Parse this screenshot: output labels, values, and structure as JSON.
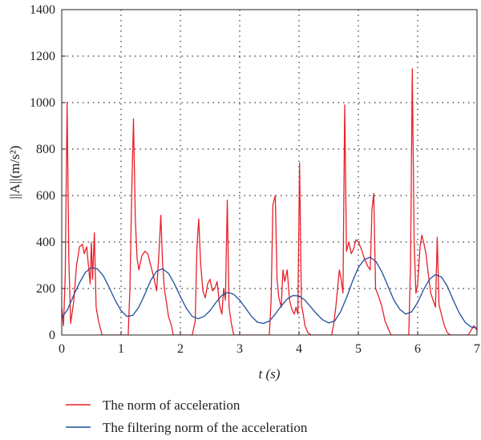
{
  "chart_data": {
    "type": "line",
    "xlabel": "t (s)",
    "ylabel": "||A||(m/s²)",
    "xlim": [
      0,
      7
    ],
    "ylim": [
      0,
      1400
    ],
    "xticks": [
      0,
      1,
      2,
      3,
      4,
      5,
      6,
      7
    ],
    "yticks": [
      0,
      200,
      400,
      600,
      800,
      1000,
      1200,
      1400
    ],
    "grid": "dotted",
    "legend_position": "bottom",
    "series": [
      {
        "name": "The norm of acceleration",
        "color": "#e8202a",
        "points": [
          [
            0.0,
            120
          ],
          [
            0.03,
            40
          ],
          [
            0.06,
            260
          ],
          [
            0.09,
            1000
          ],
          [
            0.12,
            320
          ],
          [
            0.15,
            50
          ],
          [
            0.2,
            140
          ],
          [
            0.25,
            300
          ],
          [
            0.3,
            380
          ],
          [
            0.35,
            390
          ],
          [
            0.38,
            350
          ],
          [
            0.42,
            380
          ],
          [
            0.45,
            300
          ],
          [
            0.48,
            220
          ],
          [
            0.5,
            400
          ],
          [
            0.52,
            240
          ],
          [
            0.55,
            440
          ],
          [
            0.58,
            120
          ],
          [
            0.62,
            60
          ],
          [
            0.65,
            30
          ],
          [
            0.68,
            0
          ],
          [
            1.0,
            0
          ],
          [
            1.08,
            0
          ],
          [
            1.12,
            0
          ],
          [
            1.15,
            200
          ],
          [
            1.18,
            610
          ],
          [
            1.21,
            930
          ],
          [
            1.24,
            500
          ],
          [
            1.27,
            330
          ],
          [
            1.3,
            280
          ],
          [
            1.35,
            340
          ],
          [
            1.4,
            360
          ],
          [
            1.45,
            350
          ],
          [
            1.5,
            300
          ],
          [
            1.55,
            250
          ],
          [
            1.6,
            190
          ],
          [
            1.64,
            360
          ],
          [
            1.67,
            515
          ],
          [
            1.7,
            310
          ],
          [
            1.73,
            200
          ],
          [
            1.76,
            150
          ],
          [
            1.8,
            80
          ],
          [
            1.85,
            40
          ],
          [
            1.88,
            0
          ],
          [
            2.2,
            0
          ],
          [
            2.25,
            60
          ],
          [
            2.28,
            380
          ],
          [
            2.31,
            500
          ],
          [
            2.34,
            310
          ],
          [
            2.38,
            190
          ],
          [
            2.42,
            160
          ],
          [
            2.46,
            220
          ],
          [
            2.5,
            240
          ],
          [
            2.54,
            190
          ],
          [
            2.58,
            200
          ],
          [
            2.62,
            230
          ],
          [
            2.66,
            130
          ],
          [
            2.7,
            90
          ],
          [
            2.73,
            200
          ],
          [
            2.76,
            150
          ],
          [
            2.79,
            580
          ],
          [
            2.82,
            120
          ],
          [
            2.86,
            50
          ],
          [
            2.9,
            0
          ],
          [
            3.5,
            0
          ],
          [
            3.53,
            150
          ],
          [
            3.56,
            560
          ],
          [
            3.6,
            600
          ],
          [
            3.63,
            240
          ],
          [
            3.66,
            160
          ],
          [
            3.7,
            120
          ],
          [
            3.73,
            280
          ],
          [
            3.76,
            230
          ],
          [
            3.8,
            280
          ],
          [
            3.84,
            150
          ],
          [
            3.88,
            110
          ],
          [
            3.92,
            90
          ],
          [
            3.95,
            120
          ],
          [
            3.98,
            90
          ],
          [
            4.01,
            740
          ],
          [
            4.04,
            130
          ],
          [
            4.07,
            90
          ],
          [
            4.1,
            40
          ],
          [
            4.15,
            10
          ],
          [
            4.2,
            0
          ],
          [
            4.55,
            0
          ],
          [
            4.58,
            40
          ],
          [
            4.62,
            120
          ],
          [
            4.65,
            200
          ],
          [
            4.68,
            280
          ],
          [
            4.71,
            240
          ],
          [
            4.74,
            180
          ],
          [
            4.77,
            990
          ],
          [
            4.8,
            360
          ],
          [
            4.84,
            400
          ],
          [
            4.88,
            350
          ],
          [
            4.92,
            370
          ],
          [
            4.96,
            410
          ],
          [
            5.0,
            400
          ],
          [
            5.05,
            370
          ],
          [
            5.1,
            330
          ],
          [
            5.15,
            300
          ],
          [
            5.2,
            280
          ],
          [
            5.23,
            540
          ],
          [
            5.26,
            610
          ],
          [
            5.29,
            200
          ],
          [
            5.32,
            180
          ],
          [
            5.35,
            160
          ],
          [
            5.4,
            120
          ],
          [
            5.45,
            60
          ],
          [
            5.5,
            30
          ],
          [
            5.55,
            0
          ],
          [
            5.85,
            0
          ],
          [
            5.88,
            300
          ],
          [
            5.91,
            1145
          ],
          [
            5.94,
            400
          ],
          [
            5.97,
            180
          ],
          [
            6.0,
            220
          ],
          [
            6.04,
            380
          ],
          [
            6.07,
            430
          ],
          [
            6.1,
            400
          ],
          [
            6.14,
            350
          ],
          [
            6.18,
            260
          ],
          [
            6.22,
            180
          ],
          [
            6.26,
            150
          ],
          [
            6.3,
            120
          ],
          [
            6.33,
            420
          ],
          [
            6.36,
            130
          ],
          [
            6.4,
            90
          ],
          [
            6.45,
            40
          ],
          [
            6.5,
            10
          ],
          [
            6.55,
            0
          ],
          [
            6.85,
            0
          ],
          [
            6.9,
            20
          ],
          [
            6.95,
            40
          ],
          [
            7.0,
            20
          ]
        ]
      },
      {
        "name": "The filtering norm of the acceleration",
        "color": "#1f4e9c",
        "points": [
          [
            0.0,
            75
          ],
          [
            0.1,
            110
          ],
          [
            0.2,
            170
          ],
          [
            0.3,
            225
          ],
          [
            0.4,
            270
          ],
          [
            0.5,
            290
          ],
          [
            0.6,
            285
          ],
          [
            0.7,
            255
          ],
          [
            0.8,
            205
          ],
          [
            0.9,
            150
          ],
          [
            1.0,
            105
          ],
          [
            1.1,
            80
          ],
          [
            1.2,
            85
          ],
          [
            1.3,
            120
          ],
          [
            1.4,
            175
          ],
          [
            1.5,
            235
          ],
          [
            1.6,
            275
          ],
          [
            1.7,
            285
          ],
          [
            1.8,
            265
          ],
          [
            1.9,
            220
          ],
          [
            2.0,
            165
          ],
          [
            2.1,
            115
          ],
          [
            2.2,
            80
          ],
          [
            2.3,
            70
          ],
          [
            2.4,
            80
          ],
          [
            2.5,
            105
          ],
          [
            2.6,
            140
          ],
          [
            2.7,
            170
          ],
          [
            2.8,
            183
          ],
          [
            2.9,
            175
          ],
          [
            3.0,
            150
          ],
          [
            3.1,
            115
          ],
          [
            3.2,
            80
          ],
          [
            3.3,
            55
          ],
          [
            3.4,
            50
          ],
          [
            3.5,
            60
          ],
          [
            3.6,
            90
          ],
          [
            3.7,
            125
          ],
          [
            3.8,
            155
          ],
          [
            3.9,
            170
          ],
          [
            4.0,
            168
          ],
          [
            4.1,
            150
          ],
          [
            4.2,
            120
          ],
          [
            4.3,
            90
          ],
          [
            4.4,
            65
          ],
          [
            4.5,
            52
          ],
          [
            4.6,
            60
          ],
          [
            4.7,
            100
          ],
          [
            4.8,
            160
          ],
          [
            4.9,
            230
          ],
          [
            5.0,
            290
          ],
          [
            5.1,
            325
          ],
          [
            5.2,
            335
          ],
          [
            5.3,
            315
          ],
          [
            5.4,
            270
          ],
          [
            5.5,
            210
          ],
          [
            5.6,
            150
          ],
          [
            5.7,
            110
          ],
          [
            5.8,
            90
          ],
          [
            5.9,
            100
          ],
          [
            6.0,
            140
          ],
          [
            6.1,
            195
          ],
          [
            6.2,
            240
          ],
          [
            6.3,
            260
          ],
          [
            6.4,
            250
          ],
          [
            6.5,
            210
          ],
          [
            6.6,
            150
          ],
          [
            6.7,
            95
          ],
          [
            6.8,
            55
          ],
          [
            6.9,
            35
          ],
          [
            7.0,
            30
          ]
        ]
      }
    ]
  }
}
